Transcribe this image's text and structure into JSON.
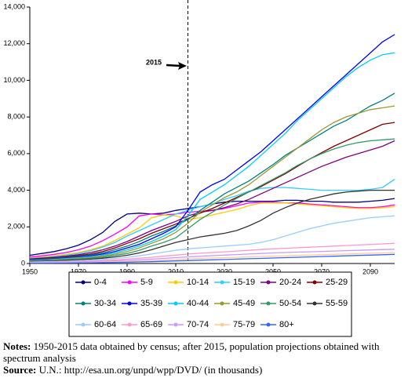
{
  "chart_data": {
    "type": "line",
    "x": [
      1950,
      1955,
      1960,
      1965,
      1970,
      1975,
      1980,
      1985,
      1990,
      1995,
      2000,
      2005,
      2010,
      2015,
      2020,
      2025,
      2030,
      2035,
      2040,
      2045,
      2050,
      2055,
      2060,
      2065,
      2070,
      2075,
      2080,
      2085,
      2090,
      2095,
      2100
    ],
    "xlim": [
      1950,
      2100
    ],
    "xticks": [
      1950,
      1970,
      1990,
      2010,
      2030,
      2050,
      2070,
      2090
    ],
    "ylim": [
      0,
      14000
    ],
    "yticks": [
      0,
      {
        "value": 2000,
        "label": "2,000"
      },
      {
        "value": 4000,
        "label": "4,000"
      },
      {
        "value": 6000,
        "label": "6,000"
      },
      {
        "value": 8000,
        "label": "8,000"
      },
      {
        "value": 10000,
        "label": "10,000"
      },
      {
        "value": 12000,
        "label": "12,000"
      },
      {
        "value": 14000,
        "label": "14,000"
      }
    ],
    "reference_x": 2015,
    "series": [
      {
        "name": "0-4",
        "color": "#000080",
        "values": [
          450,
          550,
          650,
          800,
          1000,
          1300,
          1700,
          2300,
          2700,
          2750,
          2700,
          2750,
          2900,
          3000,
          3100,
          3250,
          3350,
          3400,
          3400,
          3400,
          3400,
          3450,
          3450,
          3400,
          3400,
          3350,
          3350,
          3350,
          3400,
          3450,
          3550
        ]
      },
      {
        "name": "5-9",
        "color": "#ff00ff",
        "values": [
          350,
          420,
          500,
          600,
          750,
          950,
          1250,
          1600,
          2000,
          2600,
          2700,
          2650,
          2700,
          2800,
          2850,
          2900,
          3000,
          3150,
          3300,
          3350,
          3350,
          3300,
          3300,
          3250,
          3200,
          3150,
          3100,
          3050,
          3050,
          3100,
          3200
        ]
      },
      {
        "name": "10-14",
        "color": "#ffcc00",
        "values": [
          300,
          350,
          420,
          500,
          600,
          750,
          950,
          1250,
          1600,
          1950,
          2500,
          2650,
          2600,
          2400,
          2500,
          2650,
          2800,
          2950,
          3150,
          3300,
          3300,
          3300,
          3250,
          3200,
          3150,
          3100,
          3050,
          3000,
          3000,
          3050,
          3100
        ]
      },
      {
        "name": "15-19",
        "color": "#33ccff",
        "values": [
          280,
          320,
          380,
          450,
          550,
          700,
          900,
          1150,
          1500,
          1800,
          2100,
          2400,
          2700,
          2900,
          3100,
          3250,
          3500,
          3700,
          3950,
          4100,
          4150,
          4150,
          4100,
          4050,
          4000,
          4000,
          4000,
          4000,
          4050,
          4150,
          4600
        ]
      },
      {
        "name": "20-24",
        "color": "#800080",
        "values": [
          250,
          290,
          340,
          400,
          480,
          600,
          750,
          950,
          1200,
          1500,
          1800,
          2050,
          2300,
          2600,
          2800,
          2900,
          3050,
          3250,
          3500,
          3800,
          4100,
          4400,
          4700,
          5000,
          5300,
          5550,
          5800,
          6000,
          6200,
          6400,
          6700
        ]
      },
      {
        "name": "25-29",
        "color": "#800000",
        "values": [
          220,
          260,
          310,
          360,
          430,
          520,
          650,
          850,
          1100,
          1350,
          1650,
          1900,
          2150,
          2450,
          2750,
          3000,
          3300,
          3600,
          3900,
          4200,
          4550,
          4900,
          5300,
          5700,
          6050,
          6400,
          6700,
          7000,
          7300,
          7600,
          7700
        ]
      },
      {
        "name": "30-34",
        "color": "#008080",
        "values": [
          200,
          240,
          280,
          330,
          390,
          470,
          580,
          750,
          950,
          1200,
          1500,
          1750,
          2050,
          2400,
          2900,
          3350,
          3800,
          4150,
          4500,
          4950,
          5400,
          5900,
          6300,
          6700,
          7100,
          7500,
          7800,
          8200,
          8600,
          8900,
          9300
        ]
      },
      {
        "name": "35-39",
        "color": "#0000ff",
        "values": [
          180,
          210,
          250,
          300,
          350,
          420,
          520,
          650,
          850,
          1050,
          1350,
          1650,
          2000,
          2900,
          3900,
          4300,
          4600,
          5100,
          5600,
          6100,
          6700,
          7300,
          7900,
          8500,
          9100,
          9700,
          10300,
          10900,
          11500,
          12100,
          12500
        ]
      },
      {
        "name": "40-44",
        "color": "#00ccff",
        "values": [
          160,
          190,
          230,
          270,
          320,
          380,
          460,
          580,
          750,
          950,
          1200,
          1500,
          1850,
          2600,
          3500,
          3900,
          4300,
          4800,
          5300,
          5900,
          6500,
          7100,
          7800,
          8400,
          9000,
          9600,
          10200,
          10700,
          11100,
          11400,
          11500
        ]
      },
      {
        "name": "45-49",
        "color": "#999933",
        "values": [
          140,
          170,
          200,
          240,
          290,
          340,
          410,
          510,
          650,
          850,
          1100,
          1350,
          1700,
          2200,
          2800,
          3200,
          3600,
          3900,
          4300,
          4800,
          5300,
          5800,
          6300,
          6800,
          7300,
          7700,
          8000,
          8200,
          8400,
          8500,
          8600
        ]
      },
      {
        "name": "50-54",
        "color": "#339966",
        "values": [
          120,
          140,
          170,
          200,
          240,
          290,
          350,
          440,
          550,
          720,
          950,
          1150,
          1400,
          1900,
          2400,
          2800,
          3200,
          3550,
          3900,
          4250,
          4600,
          4950,
          5350,
          5700,
          6000,
          6250,
          6450,
          6600,
          6700,
          6750,
          6800
        ]
      },
      {
        "name": "55-59",
        "color": "#333333",
        "values": [
          100,
          120,
          140,
          170,
          200,
          240,
          290,
          360,
          450,
          580,
          750,
          950,
          1150,
          1300,
          1450,
          1550,
          1650,
          1800,
          2050,
          2350,
          2750,
          3050,
          3300,
          3500,
          3650,
          3800,
          3900,
          3950,
          4000,
          4000,
          4000
        ]
      },
      {
        "name": "60-64",
        "color": "#99ccff",
        "values": [
          80,
          95,
          110,
          130,
          160,
          190,
          230,
          280,
          340,
          420,
          520,
          620,
          720,
          800,
          850,
          900,
          950,
          1000,
          1050,
          1150,
          1300,
          1500,
          1700,
          1900,
          2050,
          2200,
          2300,
          2400,
          2500,
          2550,
          2600
        ]
      },
      {
        "name": "65-69",
        "color": "#ff99cc",
        "values": [
          60,
          70,
          85,
          100,
          120,
          140,
          170,
          200,
          240,
          290,
          340,
          400,
          460,
          520,
          560,
          600,
          640,
          680,
          720,
          760,
          800,
          830,
          860,
          890,
          920,
          950,
          980,
          1010,
          1040,
          1070,
          1100
        ]
      },
      {
        "name": "70-74",
        "color": "#cc99ff",
        "values": [
          40,
          50,
          60,
          70,
          85,
          100,
          120,
          140,
          170,
          200,
          240,
          280,
          320,
          360,
          400,
          430,
          460,
          490,
          520,
          550,
          580,
          600,
          620,
          640,
          660,
          680,
          700,
          720,
          740,
          760,
          780
        ]
      },
      {
        "name": "75-79",
        "color": "#ffcc99",
        "values": [
          25,
          30,
          38,
          45,
          55,
          65,
          80,
          95,
          110,
          130,
          160,
          190,
          220,
          250,
          280,
          300,
          320,
          340,
          360,
          380,
          400,
          420,
          440,
          460,
          480,
          500,
          520,
          540,
          560,
          580,
          600
        ]
      },
      {
        "name": "80+",
        "color": "#3366ff",
        "values": [
          15,
          18,
          22,
          27,
          33,
          40,
          48,
          58,
          70,
          85,
          100,
          120,
          140,
          160,
          180,
          200,
          220,
          240,
          260,
          280,
          300,
          320,
          340,
          360,
          380,
          400,
          420,
          440,
          460,
          480,
          500
        ]
      }
    ],
    "notes_label": "Notes:",
    "notes_text": "1950-2015 data obtained by census; after 2015, population projections obtained with spectrum analysis",
    "source_label": "Source:",
    "source_text": "U.N.: http://esa.un.org/unpd/wpp/DVD/ (in thousands)"
  }
}
